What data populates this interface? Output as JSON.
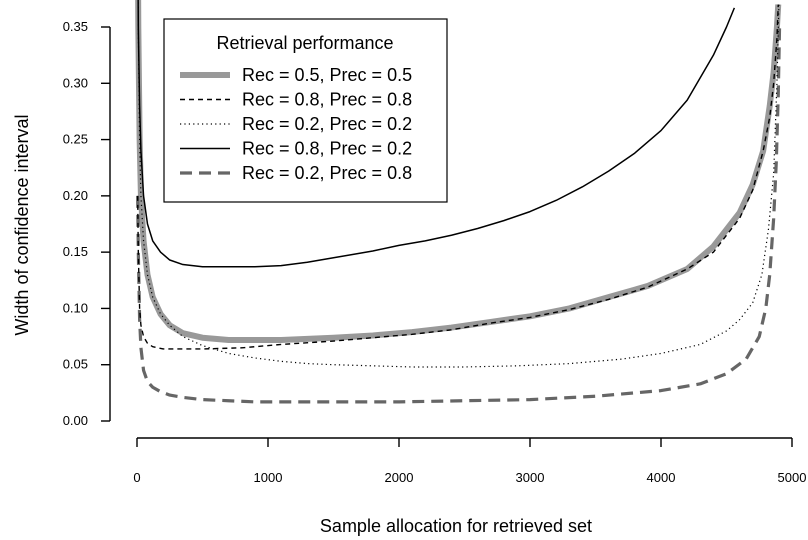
{
  "chart_data": {
    "type": "line",
    "title": "",
    "xlabel": "Sample allocation for retrieved set",
    "ylabel": "Width of confidence interval",
    "xlim": [
      -30,
      5030
    ],
    "ylim": [
      -0.037,
      0.37
    ],
    "x_ticks": [
      0,
      1000,
      2000,
      3000,
      4000,
      5000
    ],
    "x_tick_labels": [
      "0",
      "1000",
      "2000",
      "3000",
      "4000",
      "5000"
    ],
    "y_ticks": [
      0.0,
      0.05,
      0.1,
      0.15,
      0.2,
      0.25,
      0.3,
      0.35
    ],
    "y_tick_labels": [
      "0.00",
      "0.05",
      "0.10",
      "0.15",
      "0.20",
      "0.25",
      "0.30",
      "0.35"
    ],
    "grid": false,
    "legend": {
      "title": "Retrieval performance",
      "placement": "top-left"
    },
    "series": [
      {
        "name": "Rec = 0.5, Prec = 0.5",
        "color": "#999999",
        "style": "thick-solid",
        "x": [
          5,
          10,
          20,
          30,
          50,
          80,
          120,
          180,
          250,
          350,
          500,
          700,
          900,
          1100,
          1300,
          1500,
          1800,
          2100,
          2400,
          2700,
          3000,
          3300,
          3600,
          3900,
          4200,
          4400,
          4600,
          4700,
          4780,
          4830,
          4860,
          4885,
          4895
        ],
        "y": [
          0.45,
          0.35,
          0.25,
          0.2,
          0.16,
          0.13,
          0.11,
          0.095,
          0.085,
          0.078,
          0.074,
          0.072,
          0.072,
          0.072,
          0.073,
          0.074,
          0.076,
          0.079,
          0.083,
          0.088,
          0.093,
          0.1,
          0.11,
          0.12,
          0.135,
          0.155,
          0.185,
          0.21,
          0.24,
          0.28,
          0.31,
          0.35,
          0.37
        ]
      },
      {
        "name": "Rec = 0.8, Prec = 0.8",
        "color": "#000000",
        "style": "dashed",
        "x": [
          5,
          10,
          20,
          30,
          50,
          80,
          120,
          200,
          300,
          500,
          800,
          1100,
          1500,
          1800,
          2100,
          2400,
          2700,
          3000,
          3300,
          3600,
          3900,
          4200,
          4400,
          4600,
          4700,
          4780,
          4830,
          4860,
          4885,
          4895
        ],
        "y": [
          0.2,
          0.15,
          0.1,
          0.085,
          0.075,
          0.069,
          0.066,
          0.064,
          0.064,
          0.064,
          0.065,
          0.068,
          0.071,
          0.074,
          0.077,
          0.081,
          0.087,
          0.092,
          0.099,
          0.108,
          0.119,
          0.135,
          0.15,
          0.18,
          0.205,
          0.24,
          0.27,
          0.3,
          0.34,
          0.37
        ]
      },
      {
        "name": "Rec = 0.2, Prec = 0.2",
        "color": "#000000",
        "style": "dotted",
        "x": [
          5,
          10,
          20,
          30,
          50,
          80,
          120,
          180,
          250,
          350,
          500,
          700,
          900,
          1100,
          1300,
          1500,
          1800,
          2100,
          2500,
          2900,
          3300,
          3700,
          4000,
          4300,
          4500,
          4600,
          4700,
          4770,
          4820,
          4860,
          4885,
          4900
        ],
        "y": [
          0.45,
          0.35,
          0.25,
          0.2,
          0.16,
          0.13,
          0.11,
          0.095,
          0.085,
          0.075,
          0.067,
          0.06,
          0.056,
          0.053,
          0.051,
          0.05,
          0.049,
          0.048,
          0.048,
          0.049,
          0.051,
          0.055,
          0.06,
          0.068,
          0.08,
          0.09,
          0.105,
          0.13,
          0.17,
          0.22,
          0.3,
          0.37
        ]
      },
      {
        "name": "Rec = 0.8, Prec = 0.2",
        "color": "#000000",
        "style": "solid",
        "x": [
          5,
          10,
          20,
          30,
          50,
          80,
          120,
          180,
          250,
          350,
          500,
          700,
          900,
          1100,
          1300,
          1500,
          1800,
          2000,
          2200,
          2400,
          2600,
          2800,
          3000,
          3200,
          3400,
          3600,
          3800,
          4000,
          4200,
          4400,
          4500,
          4560
        ],
        "y": [
          0.45,
          0.35,
          0.28,
          0.24,
          0.2,
          0.175,
          0.16,
          0.15,
          0.143,
          0.139,
          0.137,
          0.137,
          0.137,
          0.138,
          0.141,
          0.145,
          0.151,
          0.156,
          0.16,
          0.165,
          0.171,
          0.178,
          0.186,
          0.196,
          0.208,
          0.222,
          0.238,
          0.258,
          0.285,
          0.325,
          0.35,
          0.367
        ]
      },
      {
        "name": "Rec = 0.2, Prec = 0.8",
        "color": "#666666",
        "style": "thick-dashed",
        "x": [
          5,
          10,
          20,
          30,
          50,
          80,
          120,
          180,
          250,
          350,
          500,
          700,
          900,
          1100,
          1500,
          2000,
          2500,
          3000,
          3500,
          4000,
          4300,
          4500,
          4650,
          4750,
          4800,
          4830,
          4860,
          4880,
          4895,
          4905
        ],
        "y": [
          0.2,
          0.15,
          0.09,
          0.065,
          0.045,
          0.035,
          0.03,
          0.026,
          0.023,
          0.021,
          0.019,
          0.018,
          0.017,
          0.017,
          0.017,
          0.017,
          0.018,
          0.019,
          0.022,
          0.027,
          0.033,
          0.042,
          0.055,
          0.075,
          0.1,
          0.13,
          0.18,
          0.23,
          0.29,
          0.35
        ]
      }
    ]
  }
}
